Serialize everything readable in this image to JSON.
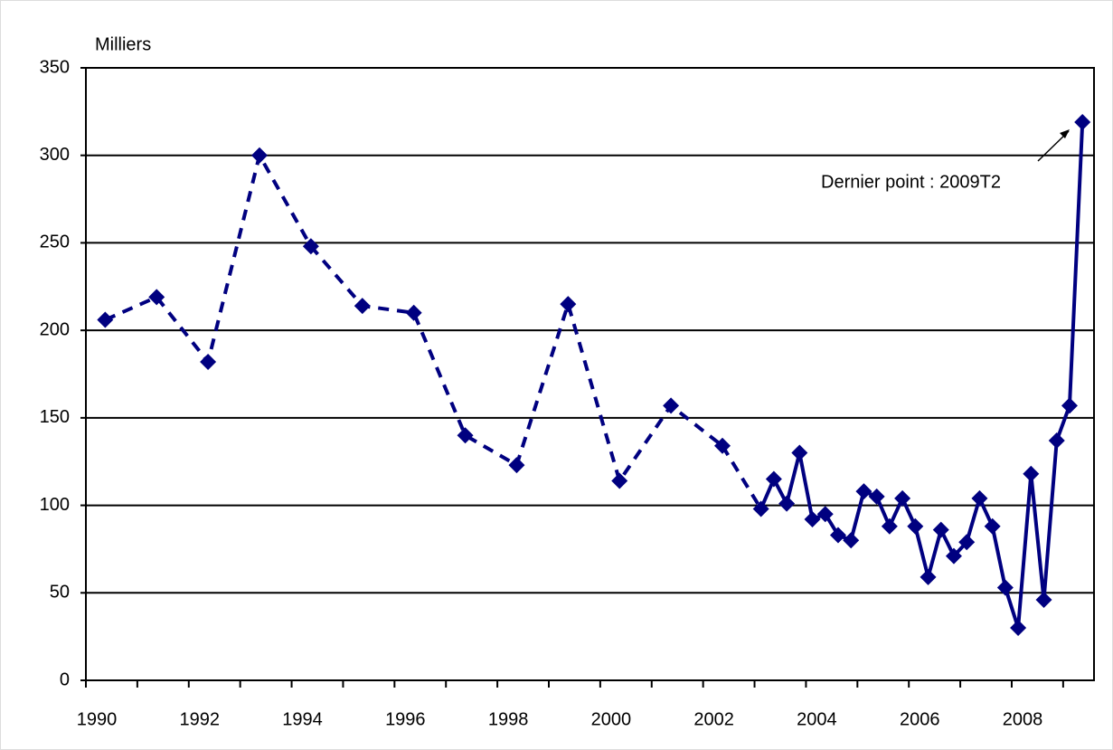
{
  "chart_data": {
    "type": "line",
    "y_axis_label": "Milliers",
    "annotation": "Dernier point : 2009T2",
    "series": [
      {
        "color": "#000080",
        "dashed": true,
        "x": [
          1990.375,
          1991.375,
          1992.375,
          1993.375,
          1994.375,
          1995.375,
          1996.375,
          1997.375,
          1998.375,
          1999.375,
          2000.375,
          2001.375,
          2002.375
        ],
        "values": [
          206,
          219,
          182,
          300,
          248,
          214,
          210,
          140,
          123,
          215,
          114,
          157,
          134
        ]
      },
      {
        "color": "#000080",
        "dashed": false,
        "x": [
          2003.125,
          2003.375,
          2003.625,
          2003.875,
          2004.125,
          2004.375,
          2004.625,
          2004.875,
          2005.125,
          2005.375,
          2005.625,
          2005.875,
          2006.125,
          2006.375,
          2006.625,
          2006.875,
          2007.125,
          2007.375,
          2007.625,
          2007.875,
          2008.125,
          2008.375,
          2008.625,
          2008.875,
          2009.125,
          2009.375
        ],
        "values": [
          98,
          115,
          101,
          130,
          92,
          95,
          83,
          80,
          108,
          105,
          88,
          104,
          88,
          59,
          86,
          71,
          79,
          104,
          88,
          53,
          30,
          118,
          46,
          137,
          157,
          319
        ]
      }
    ],
    "xlim": [
      1990,
      2009.6
    ],
    "xticks": [
      1990,
      1992,
      1994,
      1996,
      1998,
      2000,
      2002,
      2004,
      2006,
      2008
    ],
    "xminor_ticks": [
      1991,
      1993,
      1995,
      1997,
      1999,
      2001,
      2003,
      2005,
      2007,
      2009
    ],
    "ylim": [
      0,
      350
    ],
    "yticks": [
      0,
      50,
      100,
      150,
      200,
      250,
      300,
      350
    ],
    "grid": true
  }
}
